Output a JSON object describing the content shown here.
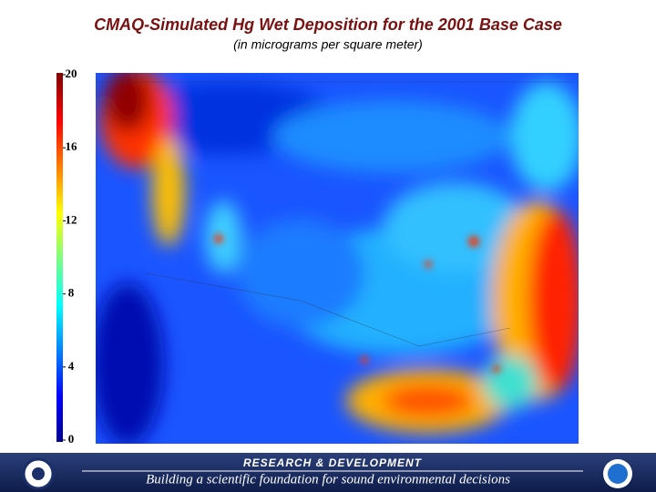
{
  "header": {
    "title": "CMAQ-Simulated Hg Wet Deposition for the 2001 Base Case",
    "subtitle": "(in micrograms per square meter)"
  },
  "colorbar": {
    "range": [
      0,
      20
    ],
    "ticks": [
      0,
      4,
      8,
      12,
      16,
      20
    ]
  },
  "footer": {
    "banner": "RESEARCH & DEVELOPMENT",
    "tagline": "Building a scientific foundation for sound environmental decisions"
  }
}
